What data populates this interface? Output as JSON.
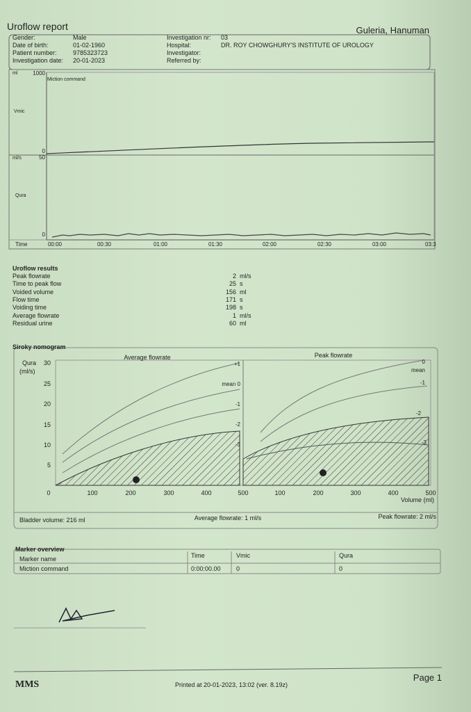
{
  "header": {
    "title": "Uroflow report",
    "patient_name": "Guleria, Hanuman"
  },
  "patient_info": {
    "left": [
      {
        "label": "Gender:",
        "value": "Male"
      },
      {
        "label": "Date of birth:",
        "value": "01-02-1960"
      },
      {
        "label": "Patient number:",
        "value": "9785323723"
      },
      {
        "label": "Investigation date:",
        "value": "20-01-2023"
      }
    ],
    "right": [
      {
        "label": "Investigation nr:",
        "value": "03"
      },
      {
        "label": "Hospital:",
        "value": "DR. ROY CHOWGHURY'S INSTITUTE OF UROLOGY"
      },
      {
        "label": "Investigator:"
      },
      {
        "label": "Referred by:"
      }
    ]
  },
  "trace": {
    "vmic_unit": "ml",
    "vmic_max": "1000",
    "vmic_label": "Vmic",
    "vmic_min": "0",
    "annotation": "Miction command",
    "qura_unit": "ml/s",
    "qura_max": "50",
    "qura_label": "Qura",
    "qura_min": "0",
    "time_label": "Time",
    "time_ticks": [
      "00:00",
      "00:30",
      "01:00",
      "01:30",
      "02:00",
      "02:30",
      "03:00",
      "03:3"
    ]
  },
  "results": {
    "title": "Uroflow results",
    "rows": [
      {
        "label": "Peak flowrate",
        "value": "2",
        "unit": "ml/s"
      },
      {
        "label": "Time to peak flow",
        "value": "25",
        "unit": "s"
      },
      {
        "label": "Voided volume",
        "value": "156",
        "unit": "ml"
      },
      {
        "label": "Flow time",
        "value": "171",
        "unit": "s"
      },
      {
        "label": "Voiding time",
        "value": "198",
        "unit": "s"
      },
      {
        "label": "Average flowrate",
        "value": "1",
        "unit": "ml/s"
      },
      {
        "label": "Residual urine",
        "value": "60",
        "unit": "ml"
      }
    ]
  },
  "nomogram": {
    "title": "Siroky nomogram",
    "y_label": "Qura",
    "y_unit": "(ml/s)",
    "y_ticks": [
      "30",
      "25",
      "20",
      "15",
      "10",
      "5"
    ],
    "x_origin": "0",
    "x_ticks_left": [
      "100",
      "200",
      "300",
      "400",
      "500"
    ],
    "x_ticks_right": [
      "100",
      "200",
      "300",
      "400",
      "500"
    ],
    "x_label": "Volume (ml)",
    "left_title": "Average flowrate",
    "right_title": "Peak flowrate",
    "left_curves": [
      "+1",
      "mean 0",
      "-1",
      "-2",
      "-3"
    ],
    "right_curves": [
      "0",
      "mean",
      "-1",
      "-2",
      "-3"
    ],
    "footer": [
      "Bladder volume: 216 ml",
      "Average flowrate: 1 ml/s",
      "Peak flowrate: 2 ml/s"
    ]
  },
  "markers": {
    "title": "Marker overview",
    "headers": [
      "Marker name",
      "Time",
      "Vmic",
      "Qura"
    ],
    "rows": [
      [
        "Miction command",
        "0:00:00.00",
        "0",
        "0"
      ]
    ]
  },
  "footer": {
    "logo": "MMS",
    "printed": "Printed at 20-01-2023, 13:02  (ver. 8.19z)",
    "page": "Page 1"
  }
}
